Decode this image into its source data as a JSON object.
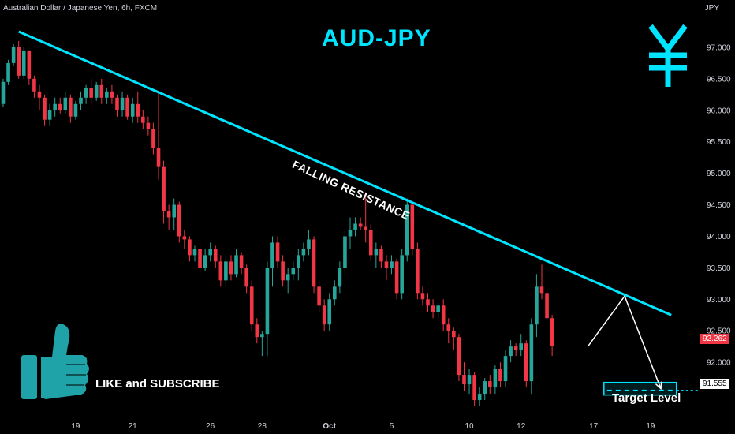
{
  "header": {
    "symbol": "Australian Dollar / Japanese Yen, 6h, FXCM",
    "unit": "JPY"
  },
  "annotations": {
    "title": "AUD-JPY",
    "trendline_label": "FALLING RESISTANCE",
    "like_text": "LIKE and SUBSCRIBE",
    "target_label": "Target Level",
    "yen_icon": "yen-sign-icon",
    "thumb_icon": "thumbs-up-icon"
  },
  "colors": {
    "up": "#26a69a",
    "down": "#f23645",
    "accent": "#00e5ff",
    "background": "#000000"
  },
  "chart_data": {
    "type": "candlestick",
    "ylim": [
      91.15,
      97.6
    ],
    "y_ticks": [
      97.0,
      96.5,
      96.0,
      95.5,
      95.0,
      94.5,
      94.0,
      93.5,
      93.0,
      92.5,
      92.0
    ],
    "y_tick_labels": [
      "97.000",
      "96.500",
      "96.000",
      "95.500",
      "95.000",
      "94.500",
      "94.000",
      "93.500",
      "93.000",
      "92.500",
      "92.000"
    ],
    "x_labels": [
      "19",
      "21",
      "26",
      "28",
      "Oct",
      "5",
      "10",
      "12",
      "17",
      "19"
    ],
    "x_label_index": [
      14,
      25,
      40,
      50,
      63,
      75,
      90,
      100,
      114,
      125
    ],
    "x_range": [
      0,
      134
    ],
    "last_price": 92.262,
    "last_price_label": "92.262",
    "target_price": 91.555,
    "target_price_label": "91.555",
    "candles": [
      [
        96.1,
        96.5,
        96.05,
        96.45
      ],
      [
        96.45,
        96.8,
        96.4,
        96.75
      ],
      [
        96.75,
        97.05,
        96.7,
        97.0
      ],
      [
        97.0,
        97.1,
        96.5,
        96.55
      ],
      [
        96.55,
        97.0,
        96.5,
        96.95
      ],
      [
        96.95,
        96.95,
        96.4,
        96.5
      ],
      [
        96.5,
        96.55,
        96.2,
        96.3
      ],
      [
        96.3,
        96.4,
        96.0,
        96.2
      ],
      [
        96.2,
        96.25,
        95.75,
        95.85
      ],
      [
        95.85,
        96.1,
        95.75,
        96.0
      ],
      [
        96.0,
        96.2,
        95.9,
        96.1
      ],
      [
        96.1,
        96.2,
        95.95,
        96.0
      ],
      [
        96.0,
        96.3,
        95.95,
        96.2
      ],
      [
        96.2,
        96.25,
        95.8,
        95.9
      ],
      [
        95.9,
        96.15,
        95.85,
        96.1
      ],
      [
        96.1,
        96.3,
        96.0,
        96.2
      ],
      [
        96.2,
        96.4,
        96.1,
        96.35
      ],
      [
        96.35,
        96.5,
        96.1,
        96.2
      ],
      [
        96.2,
        96.45,
        96.15,
        96.4
      ],
      [
        96.4,
        96.5,
        96.1,
        96.2
      ],
      [
        96.2,
        96.35,
        96.1,
        96.3
      ],
      [
        96.3,
        96.4,
        96.1,
        96.2
      ],
      [
        96.2,
        96.25,
        95.9,
        96.0
      ],
      [
        96.0,
        96.3,
        95.9,
        96.2
      ],
      [
        96.2,
        96.25,
        95.85,
        95.9
      ],
      [
        95.9,
        96.2,
        95.8,
        96.1
      ],
      [
        96.1,
        96.3,
        95.8,
        95.9
      ],
      [
        95.9,
        96.0,
        95.7,
        95.8
      ],
      [
        95.8,
        95.9,
        95.6,
        95.7
      ],
      [
        95.7,
        95.8,
        95.3,
        95.4
      ],
      [
        95.4,
        96.3,
        94.9,
        95.1
      ],
      [
        95.1,
        95.2,
        94.2,
        94.4
      ],
      [
        94.4,
        94.5,
        94.1,
        94.3
      ],
      [
        94.3,
        94.6,
        94.1,
        94.5
      ],
      [
        94.5,
        94.55,
        93.9,
        94.0
      ],
      [
        94.0,
        94.1,
        93.8,
        93.95
      ],
      [
        93.95,
        94.0,
        93.6,
        93.7
      ],
      [
        93.7,
        93.85,
        93.6,
        93.8
      ],
      [
        93.8,
        93.9,
        93.4,
        93.5
      ],
      [
        93.5,
        93.8,
        93.45,
        93.7
      ],
      [
        93.7,
        93.9,
        93.6,
        93.8
      ],
      [
        93.8,
        93.85,
        93.5,
        93.6
      ],
      [
        93.6,
        93.7,
        93.2,
        93.3
      ],
      [
        93.3,
        93.7,
        93.2,
        93.6
      ],
      [
        93.6,
        93.7,
        93.3,
        93.4
      ],
      [
        93.4,
        93.8,
        93.35,
        93.7
      ],
      [
        93.7,
        93.75,
        93.4,
        93.5
      ],
      [
        93.5,
        93.55,
        93.1,
        93.2
      ],
      [
        93.2,
        93.3,
        92.5,
        92.6
      ],
      [
        92.6,
        92.7,
        92.3,
        92.4
      ],
      [
        92.4,
        92.5,
        92.1,
        92.45
      ],
      [
        92.45,
        93.6,
        92.1,
        93.5
      ],
      [
        93.5,
        94.0,
        93.2,
        93.9
      ],
      [
        93.9,
        94.0,
        93.5,
        93.6
      ],
      [
        93.6,
        93.7,
        93.2,
        93.3
      ],
      [
        93.3,
        93.5,
        93.1,
        93.4
      ],
      [
        93.4,
        93.6,
        93.3,
        93.5
      ],
      [
        93.5,
        93.8,
        93.3,
        93.7
      ],
      [
        93.7,
        93.9,
        93.6,
        93.8
      ],
      [
        93.8,
        94.1,
        93.7,
        93.95
      ],
      [
        93.95,
        94.0,
        93.1,
        93.2
      ],
      [
        93.2,
        93.3,
        92.8,
        92.9
      ],
      [
        92.9,
        93.0,
        92.5,
        92.6
      ],
      [
        92.6,
        93.1,
        92.5,
        93.0
      ],
      [
        93.0,
        93.3,
        92.9,
        93.2
      ],
      [
        93.2,
        93.6,
        93.1,
        93.5
      ],
      [
        93.5,
        94.1,
        93.4,
        94.0
      ],
      [
        94.0,
        94.3,
        93.8,
        94.1
      ],
      [
        94.1,
        94.3,
        94.0,
        94.2
      ],
      [
        94.2,
        94.3,
        94.1,
        94.15
      ],
      [
        94.15,
        94.7,
        93.9,
        94.1
      ],
      [
        94.1,
        94.2,
        93.6,
        93.7
      ],
      [
        93.7,
        93.9,
        93.5,
        93.8
      ],
      [
        93.8,
        93.85,
        93.5,
        93.6
      ],
      [
        93.6,
        93.7,
        93.3,
        93.5
      ],
      [
        93.5,
        93.7,
        93.4,
        93.6
      ],
      [
        93.6,
        93.65,
        93.0,
        93.1
      ],
      [
        93.1,
        93.8,
        93.0,
        93.7
      ],
      [
        93.7,
        94.6,
        93.6,
        94.5
      ],
      [
        94.5,
        94.55,
        93.7,
        93.8
      ],
      [
        93.8,
        93.9,
        93.0,
        93.1
      ],
      [
        93.1,
        93.2,
        92.9,
        93.0
      ],
      [
        93.0,
        93.1,
        92.8,
        92.9
      ],
      [
        92.9,
        93.0,
        92.7,
        92.8
      ],
      [
        92.8,
        92.95,
        92.7,
        92.9
      ],
      [
        92.9,
        93.0,
        92.5,
        92.6
      ],
      [
        92.6,
        92.7,
        92.3,
        92.5
      ],
      [
        92.5,
        92.55,
        92.2,
        92.4
      ],
      [
        92.4,
        92.45,
        91.7,
        91.8
      ],
      [
        91.8,
        92.0,
        91.55,
        91.65
      ],
      [
        91.65,
        91.9,
        91.5,
        91.8
      ],
      [
        91.8,
        91.85,
        91.3,
        91.4
      ],
      [
        91.4,
        91.6,
        91.3,
        91.5
      ],
      [
        91.5,
        91.75,
        91.4,
        91.7
      ],
      [
        91.7,
        91.8,
        91.5,
        91.6
      ],
      [
        91.6,
        91.95,
        91.5,
        91.9
      ],
      [
        91.9,
        92.0,
        91.6,
        91.7
      ],
      [
        91.7,
        92.2,
        91.6,
        92.1
      ],
      [
        92.1,
        92.35,
        92.0,
        92.25
      ],
      [
        92.25,
        92.3,
        92.1,
        92.2
      ],
      [
        92.2,
        92.45,
        92.1,
        92.3
      ],
      [
        92.3,
        92.35,
        91.6,
        91.7
      ],
      [
        91.7,
        92.7,
        91.5,
        92.6
      ],
      [
        92.6,
        93.4,
        92.4,
        93.2
      ],
      [
        93.2,
        93.55,
        93.0,
        93.1
      ],
      [
        93.1,
        93.2,
        92.6,
        92.7
      ],
      [
        92.7,
        92.75,
        92.1,
        92.262
      ]
    ],
    "projection": [
      {
        "i": 113,
        "y": 92.262
      },
      {
        "i": 120,
        "y": 93.05
      },
      {
        "i": 127,
        "y": 91.58
      }
    ],
    "trendline": [
      {
        "i": 3,
        "y": 97.25
      },
      {
        "i": 129,
        "y": 92.75
      }
    ],
    "target_zone": [
      91.48,
      91.68
    ]
  }
}
